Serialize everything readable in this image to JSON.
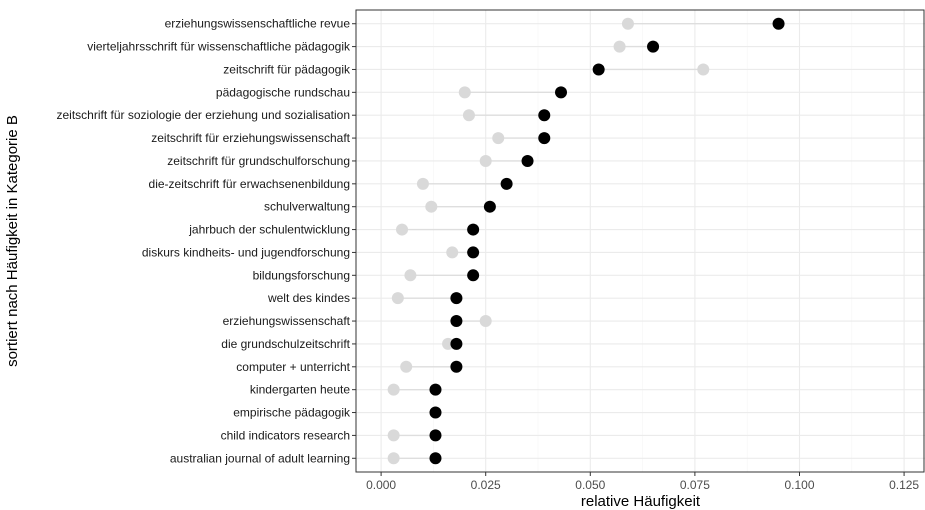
{
  "chart_data": {
    "type": "scatter",
    "title": "",
    "xlabel": "relative Häufigkeit",
    "ylabel": "sortiert nach Häufigkeit in Kategorie B",
    "xlim": [
      -0.006,
      0.13
    ],
    "xticks": [
      0.0,
      0.025,
      0.05,
      0.075,
      0.1,
      0.125
    ],
    "xtick_labels": [
      "0.000",
      "0.025",
      "0.050",
      "0.075",
      "0.100",
      "0.125"
    ],
    "grid": true,
    "legend": "none",
    "categories": [
      "erziehungswissenschaftliche revue",
      "vierteljahrsschrift für wissenschaftliche pädagogik",
      "zeitschrift für pädagogik",
      "pädagogische rundschau",
      "zeitschrift für soziologie der erziehung und sozialisation",
      "zeitschrift für erziehungswissenschaft",
      "zeitschrift für grundschulforschung",
      "die-zeitschrift für erwachsenenbildung",
      "schulverwaltung",
      "jahrbuch der schulentwicklung",
      "diskurs kindheits- und jugendforschung",
      "bildungsforschung",
      "welt des kindes",
      "erziehungswissenschaft",
      "die grundschulzeitschrift",
      "computer + unterricht",
      "kindergarten heute",
      "empirische pädagogik",
      "child indicators research",
      "australian journal of adult learning"
    ],
    "series": [
      {
        "color": "#d9d9d9",
        "values": [
          0.059,
          0.057,
          0.077,
          0.02,
          0.021,
          0.028,
          0.025,
          0.01,
          0.012,
          0.005,
          0.017,
          0.007,
          0.004,
          0.025,
          0.016,
          0.006,
          0.003,
          0.013,
          0.003,
          0.003
        ]
      },
      {
        "color": "#000000",
        "values": [
          0.095,
          0.065,
          0.052,
          0.043,
          0.039,
          0.039,
          0.035,
          0.03,
          0.026,
          0.022,
          0.022,
          0.022,
          0.018,
          0.018,
          0.018,
          0.018,
          0.013,
          0.013,
          0.013,
          0.013
        ]
      }
    ],
    "colors": {
      "panel_border": "#333333",
      "grid_major": "#ebebeb",
      "grid_minor": "#f5f5f5",
      "segment": "#dedede"
    }
  }
}
